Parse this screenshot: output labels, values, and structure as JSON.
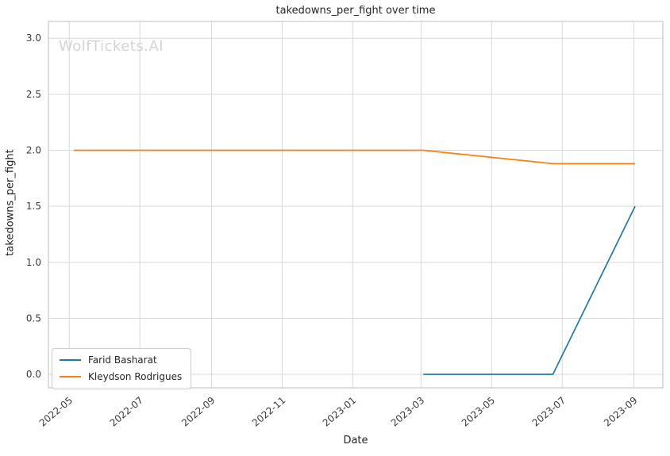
{
  "chart_data": {
    "type": "line",
    "title": "takedowns_per_fight over time",
    "xlabel": "Date",
    "ylabel": "takedowns_per_fight",
    "watermark": "WolfTickets.AI",
    "grid": true,
    "legend_position": "lower left",
    "background_color": "#ffffff",
    "gridline_color": "#d9d9d9",
    "x_ticks": [
      "2022-05",
      "2022-07",
      "2022-09",
      "2022-11",
      "2023-01",
      "2023-03",
      "2023-05",
      "2023-07",
      "2023-09"
    ],
    "y_ticks": [
      0.0,
      0.5,
      1.0,
      1.5,
      2.0,
      2.5,
      3.0
    ],
    "ylim": [
      -0.12,
      3.15
    ],
    "x_origin": "2022-05-01",
    "xlim_days": [
      -18,
      513
    ],
    "series": [
      {
        "name": "Farid Basharat",
        "color": "#1f77b4",
        "points": [
          {
            "date": "2023-03-03",
            "value": 0.0
          },
          {
            "date": "2023-06-23",
            "value": 0.0
          },
          {
            "date": "2023-09-02",
            "value": 1.5
          }
        ]
      },
      {
        "name": "Kleydson Rodrigues",
        "color": "#ff7f0e",
        "points": [
          {
            "date": "2022-05-05",
            "value": 2.0
          },
          {
            "date": "2023-03-03",
            "value": 2.0
          },
          {
            "date": "2023-06-23",
            "value": 1.88
          },
          {
            "date": "2023-09-02",
            "value": 1.88
          }
        ]
      }
    ]
  }
}
